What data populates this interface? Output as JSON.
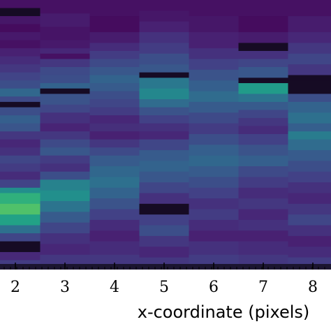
{
  "chart_data": {
    "type": "heatmap",
    "title": "",
    "xlabel": "x-coordinate (pixels)",
    "ylabel": "",
    "colormap": "viridis",
    "x_ticks": [
      "2",
      "3",
      "4",
      "5",
      "6",
      "7",
      "8"
    ],
    "columns": [
      {
        "x": 2,
        "bands": [
          [
            0.0,
            0.03,
            0.06
          ],
          [
            0.03,
            0.06,
            0.02
          ],
          [
            0.06,
            0.09,
            0.08
          ],
          [
            0.09,
            0.12,
            0.04
          ],
          [
            0.12,
            0.15,
            0.09
          ],
          [
            0.15,
            0.18,
            0.06
          ],
          [
            0.18,
            0.21,
            0.12
          ],
          [
            0.21,
            0.24,
            0.16
          ],
          [
            0.24,
            0.27,
            0.2
          ],
          [
            0.27,
            0.3,
            0.25
          ],
          [
            0.3,
            0.33,
            0.3
          ],
          [
            0.33,
            0.36,
            0.42
          ],
          [
            0.36,
            0.38,
            0.28
          ],
          [
            0.38,
            0.4,
            0.03
          ],
          [
            0.4,
            0.43,
            0.3
          ],
          [
            0.43,
            0.46,
            0.38
          ],
          [
            0.46,
            0.49,
            0.33
          ],
          [
            0.49,
            0.52,
            0.2
          ],
          [
            0.52,
            0.55,
            0.14
          ],
          [
            0.55,
            0.58,
            0.18
          ],
          [
            0.58,
            0.61,
            0.26
          ],
          [
            0.61,
            0.64,
            0.22
          ],
          [
            0.64,
            0.67,
            0.16
          ],
          [
            0.67,
            0.7,
            0.25
          ],
          [
            0.7,
            0.72,
            0.62
          ],
          [
            0.72,
            0.76,
            0.78
          ],
          [
            0.76,
            0.8,
            0.85
          ],
          [
            0.8,
            0.84,
            0.72
          ],
          [
            0.84,
            0.87,
            0.46
          ],
          [
            0.87,
            0.9,
            0.26
          ],
          [
            0.9,
            0.94,
            0.0
          ],
          [
            0.94,
            0.97,
            0.15
          ],
          [
            0.97,
            1.0,
            0.22
          ]
        ]
      },
      {
        "x": 3,
        "bands": [
          [
            0.0,
            0.05,
            0.06
          ],
          [
            0.05,
            0.1,
            0.1
          ],
          [
            0.1,
            0.15,
            0.07
          ],
          [
            0.15,
            0.18,
            0.09
          ],
          [
            0.18,
            0.2,
            0.14
          ],
          [
            0.2,
            0.22,
            0.06
          ],
          [
            0.22,
            0.25,
            0.2
          ],
          [
            0.25,
            0.28,
            0.28
          ],
          [
            0.28,
            0.31,
            0.3
          ],
          [
            0.31,
            0.33,
            0.4
          ],
          [
            0.33,
            0.35,
            0.02
          ],
          [
            0.35,
            0.39,
            0.32
          ],
          [
            0.39,
            0.42,
            0.26
          ],
          [
            0.42,
            0.46,
            0.18
          ],
          [
            0.46,
            0.49,
            0.13
          ],
          [
            0.49,
            0.52,
            0.2
          ],
          [
            0.52,
            0.55,
            0.28
          ],
          [
            0.55,
            0.58,
            0.34
          ],
          [
            0.58,
            0.61,
            0.22
          ],
          [
            0.61,
            0.64,
            0.18
          ],
          [
            0.64,
            0.67,
            0.3
          ],
          [
            0.67,
            0.71,
            0.55
          ],
          [
            0.71,
            0.75,
            0.62
          ],
          [
            0.75,
            0.79,
            0.48
          ],
          [
            0.79,
            0.83,
            0.36
          ],
          [
            0.83,
            0.87,
            0.26
          ],
          [
            0.87,
            0.91,
            0.18
          ],
          [
            0.91,
            0.95,
            0.14
          ],
          [
            0.95,
            1.0,
            0.2
          ]
        ]
      },
      {
        "x": 4,
        "bands": [
          [
            0.0,
            0.06,
            0.06
          ],
          [
            0.06,
            0.12,
            0.04
          ],
          [
            0.12,
            0.16,
            0.1
          ],
          [
            0.16,
            0.19,
            0.16
          ],
          [
            0.19,
            0.22,
            0.22
          ],
          [
            0.22,
            0.25,
            0.28
          ],
          [
            0.25,
            0.28,
            0.34
          ],
          [
            0.28,
            0.31,
            0.4
          ],
          [
            0.31,
            0.34,
            0.36
          ],
          [
            0.34,
            0.37,
            0.3
          ],
          [
            0.37,
            0.4,
            0.26
          ],
          [
            0.4,
            0.43,
            0.22
          ],
          [
            0.43,
            0.46,
            0.14
          ],
          [
            0.46,
            0.49,
            0.17
          ],
          [
            0.49,
            0.52,
            0.12
          ],
          [
            0.52,
            0.55,
            0.2
          ],
          [
            0.55,
            0.58,
            0.28
          ],
          [
            0.58,
            0.62,
            0.36
          ],
          [
            0.62,
            0.66,
            0.42
          ],
          [
            0.66,
            0.7,
            0.46
          ],
          [
            0.7,
            0.74,
            0.4
          ],
          [
            0.74,
            0.78,
            0.32
          ],
          [
            0.78,
            0.82,
            0.24
          ],
          [
            0.82,
            0.86,
            0.16
          ],
          [
            0.86,
            0.9,
            0.12
          ],
          [
            0.9,
            0.95,
            0.16
          ],
          [
            0.95,
            1.0,
            0.2
          ]
        ]
      },
      {
        "x": 5,
        "bands": [
          [
            0.0,
            0.04,
            0.06
          ],
          [
            0.04,
            0.08,
            0.08
          ],
          [
            0.08,
            0.12,
            0.12
          ],
          [
            0.12,
            0.16,
            0.18
          ],
          [
            0.16,
            0.2,
            0.22
          ],
          [
            0.2,
            0.24,
            0.3
          ],
          [
            0.24,
            0.27,
            0.34
          ],
          [
            0.27,
            0.29,
            0.0
          ],
          [
            0.29,
            0.33,
            0.5
          ],
          [
            0.33,
            0.37,
            0.58
          ],
          [
            0.37,
            0.4,
            0.44
          ],
          [
            0.4,
            0.43,
            0.32
          ],
          [
            0.43,
            0.46,
            0.24
          ],
          [
            0.46,
            0.49,
            0.18
          ],
          [
            0.49,
            0.52,
            0.14
          ],
          [
            0.52,
            0.56,
            0.26
          ],
          [
            0.56,
            0.6,
            0.36
          ],
          [
            0.6,
            0.64,
            0.4
          ],
          [
            0.64,
            0.68,
            0.34
          ],
          [
            0.68,
            0.72,
            0.26
          ],
          [
            0.72,
            0.76,
            0.18
          ],
          [
            0.76,
            0.8,
            0.0
          ],
          [
            0.8,
            0.84,
            0.24
          ],
          [
            0.84,
            0.88,
            0.3
          ],
          [
            0.88,
            0.92,
            0.2
          ],
          [
            0.92,
            0.96,
            0.14
          ],
          [
            0.96,
            1.0,
            0.2
          ]
        ]
      },
      {
        "x": 6,
        "bands": [
          [
            0.0,
            0.06,
            0.06
          ],
          [
            0.06,
            0.12,
            0.08
          ],
          [
            0.12,
            0.18,
            0.12
          ],
          [
            0.18,
            0.22,
            0.18
          ],
          [
            0.22,
            0.26,
            0.24
          ],
          [
            0.26,
            0.3,
            0.32
          ],
          [
            0.3,
            0.34,
            0.38
          ],
          [
            0.34,
            0.38,
            0.44
          ],
          [
            0.38,
            0.42,
            0.36
          ],
          [
            0.42,
            0.46,
            0.28
          ],
          [
            0.46,
            0.5,
            0.22
          ],
          [
            0.5,
            0.54,
            0.3
          ],
          [
            0.54,
            0.58,
            0.38
          ],
          [
            0.58,
            0.62,
            0.42
          ],
          [
            0.62,
            0.66,
            0.36
          ],
          [
            0.66,
            0.7,
            0.3
          ],
          [
            0.7,
            0.74,
            0.24
          ],
          [
            0.74,
            0.78,
            0.18
          ],
          [
            0.78,
            0.82,
            0.22
          ],
          [
            0.82,
            0.86,
            0.16
          ],
          [
            0.86,
            0.9,
            0.12
          ],
          [
            0.9,
            0.95,
            0.18
          ],
          [
            0.95,
            1.0,
            0.22
          ]
        ]
      },
      {
        "x": 7,
        "bands": [
          [
            0.0,
            0.06,
            0.06
          ],
          [
            0.06,
            0.12,
            0.04
          ],
          [
            0.12,
            0.16,
            0.1
          ],
          [
            0.16,
            0.19,
            0.0
          ],
          [
            0.19,
            0.22,
            0.18
          ],
          [
            0.22,
            0.25,
            0.26
          ],
          [
            0.25,
            0.29,
            0.34
          ],
          [
            0.29,
            0.31,
            0.0
          ],
          [
            0.31,
            0.35,
            0.68
          ],
          [
            0.35,
            0.38,
            0.48
          ],
          [
            0.38,
            0.41,
            0.36
          ],
          [
            0.41,
            0.44,
            0.26
          ],
          [
            0.44,
            0.47,
            0.2
          ],
          [
            0.47,
            0.5,
            0.16
          ],
          [
            0.5,
            0.54,
            0.24
          ],
          [
            0.54,
            0.58,
            0.32
          ],
          [
            0.58,
            0.62,
            0.38
          ],
          [
            0.62,
            0.66,
            0.28
          ],
          [
            0.66,
            0.7,
            0.22
          ],
          [
            0.7,
            0.74,
            0.16
          ],
          [
            0.74,
            0.78,
            0.2
          ],
          [
            0.78,
            0.82,
            0.14
          ],
          [
            0.82,
            0.86,
            0.18
          ],
          [
            0.86,
            0.9,
            0.12
          ],
          [
            0.9,
            0.95,
            0.16
          ],
          [
            0.95,
            1.0,
            0.2
          ]
        ]
      },
      {
        "x": 8,
        "bands": [
          [
            0.0,
            0.06,
            0.06
          ],
          [
            0.06,
            0.12,
            0.1
          ],
          [
            0.12,
            0.16,
            0.14
          ],
          [
            0.16,
            0.2,
            0.2
          ],
          [
            0.2,
            0.24,
            0.26
          ],
          [
            0.24,
            0.28,
            0.2
          ],
          [
            0.28,
            0.3,
            0.02
          ],
          [
            0.3,
            0.35,
            0.0
          ],
          [
            0.35,
            0.38,
            0.3
          ],
          [
            0.38,
            0.42,
            0.4
          ],
          [
            0.42,
            0.46,
            0.46
          ],
          [
            0.46,
            0.49,
            0.38
          ],
          [
            0.49,
            0.52,
            0.52
          ],
          [
            0.52,
            0.56,
            0.44
          ],
          [
            0.56,
            0.6,
            0.36
          ],
          [
            0.6,
            0.64,
            0.3
          ],
          [
            0.64,
            0.68,
            0.24
          ],
          [
            0.68,
            0.72,
            0.18
          ],
          [
            0.72,
            0.76,
            0.14
          ],
          [
            0.76,
            0.8,
            0.2
          ],
          [
            0.8,
            0.84,
            0.26
          ],
          [
            0.84,
            0.88,
            0.18
          ],
          [
            0.88,
            0.92,
            0.12
          ],
          [
            0.92,
            0.96,
            0.16
          ],
          [
            0.96,
            1.0,
            0.22
          ]
        ]
      }
    ]
  }
}
